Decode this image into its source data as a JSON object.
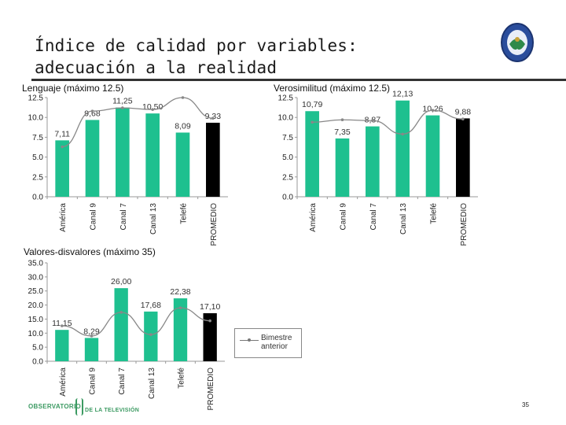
{
  "slide": {
    "title_line1": "Índice de calidad por variables:",
    "title_line2": "adecuación a la realidad",
    "page_number": "35",
    "footer_brand_left": "OBSERVATORIO",
    "footer_brand_right": "DE LA TELEVISIÓN",
    "legend_label_line1": "Bimestre",
    "legend_label_line2": "anterior",
    "colors": {
      "bar": "#1ec08f",
      "promedio_bar": "#000000",
      "line": "#888888"
    }
  },
  "chart_data": [
    {
      "type": "bar",
      "title": "Lenguaje (máximo 12.5)",
      "categories": [
        "América",
        "Canal 9",
        "Canal 7",
        "Canal 13",
        "Telefé",
        "PROMEDIO"
      ],
      "values": [
        7.11,
        9.68,
        11.25,
        10.5,
        8.09,
        9.33
      ],
      "value_labels": [
        "7,11",
        "9,68",
        "11,25",
        "10,50",
        "8,09",
        "9,33"
      ],
      "previous": [
        6.3,
        10.8,
        11.2,
        11.0,
        12.5,
        9.9
      ],
      "yticks": [
        "0.0",
        "2.5",
        "5.0",
        "7.5",
        "10.0",
        "12.5"
      ],
      "ylim": [
        0,
        12.5
      ],
      "grid": false
    },
    {
      "type": "bar",
      "title": "Verosimilitud (máximo 12.5)",
      "categories": [
        "América",
        "Canal 9",
        "Canal 7",
        "Canal 13",
        "Telefé",
        "PROMEDIO"
      ],
      "values": [
        10.79,
        7.35,
        8.87,
        12.13,
        10.26,
        9.88
      ],
      "value_labels": [
        "10,79",
        "7,35",
        "8,87",
        "12,13",
        "10,26",
        "9,88"
      ],
      "previous": [
        9.4,
        9.7,
        9.6,
        7.9,
        10.9,
        9.8
      ],
      "yticks": [
        "0.0",
        "2.5",
        "5.0",
        "7.5",
        "10.0",
        "12.5"
      ],
      "ylim": [
        0,
        12.5
      ],
      "grid": false
    },
    {
      "type": "bar",
      "title": "Valores-disvalores (máximo 35)",
      "categories": [
        "América",
        "Canal 9",
        "Canal 7",
        "Canal 13",
        "Telefé",
        "PROMEDIO"
      ],
      "values": [
        11.15,
        8.29,
        26.0,
        17.68,
        22.38,
        17.1
      ],
      "value_labels": [
        "11,15",
        "8,29",
        "26,00",
        "17,68",
        "22,38",
        "17,10"
      ],
      "previous": [
        12.6,
        9.0,
        17.4,
        9.5,
        19.0,
        14.4
      ],
      "yticks": [
        "0.0",
        "5.0",
        "10.0",
        "15.0",
        "20.0",
        "25.0",
        "30.0",
        "35.0"
      ],
      "ylim": [
        0,
        35
      ],
      "grid": false
    }
  ]
}
